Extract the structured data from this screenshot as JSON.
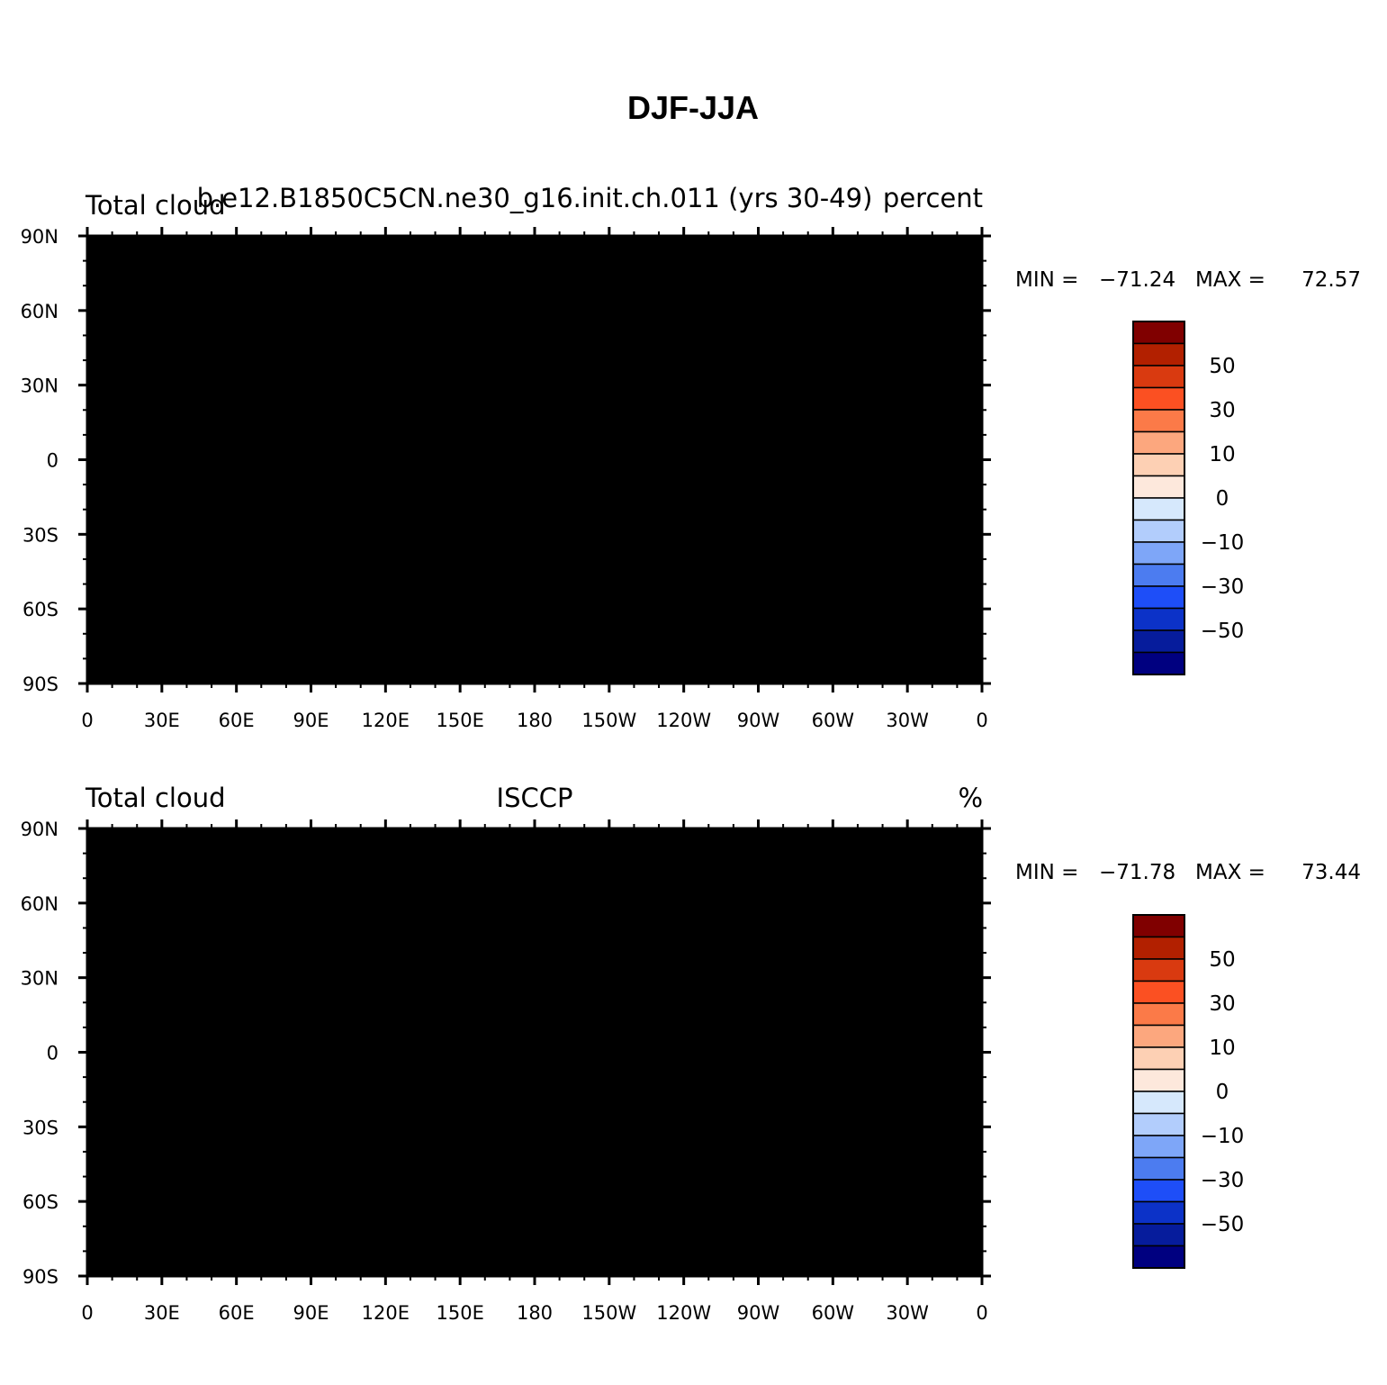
{
  "figure_title": "DJF-JJA",
  "panels": [
    {
      "left_title": "Total cloud",
      "center_title": "b.e12.B1850C5CN.ne30_g16.init.ch.011 (yrs 30-49)",
      "right_title": "percent",
      "stats": {
        "min_label": "MIN = ",
        "min": "−71.24",
        "max_label": "MAX = ",
        "max": "72.57"
      }
    },
    {
      "left_title": "Total cloud",
      "center_title": "ISCCP",
      "right_title": "%",
      "stats": {
        "min_label": "MIN = ",
        "min": "−71.78",
        "max_label": "MAX = ",
        "max": "73.44"
      }
    }
  ],
  "lat_ticks": [
    "90N",
    "60N",
    "30N",
    "0",
    "30S",
    "60S",
    "90S"
  ],
  "lon_ticks": [
    "0",
    "30E",
    "60E",
    "90E",
    "120E",
    "150E",
    "180",
    "150W",
    "120W",
    "90W",
    "60W",
    "30W",
    "0"
  ],
  "colorbar": {
    "labels": [
      "50",
      "30",
      "10",
      "0",
      "−10",
      "−30",
      "−50"
    ],
    "colors": [
      "#800000",
      "#b22000",
      "#d93a10",
      "#fb5022",
      "#fb7a48",
      "#fca77e",
      "#fdd0b4",
      "#fde8dc",
      "#d6e8fc",
      "#b2cdfc",
      "#7ea6f8",
      "#4c7cf0",
      "#1e4ef8",
      "#0c32c8",
      "#061c9c",
      "#000080"
    ]
  }
}
